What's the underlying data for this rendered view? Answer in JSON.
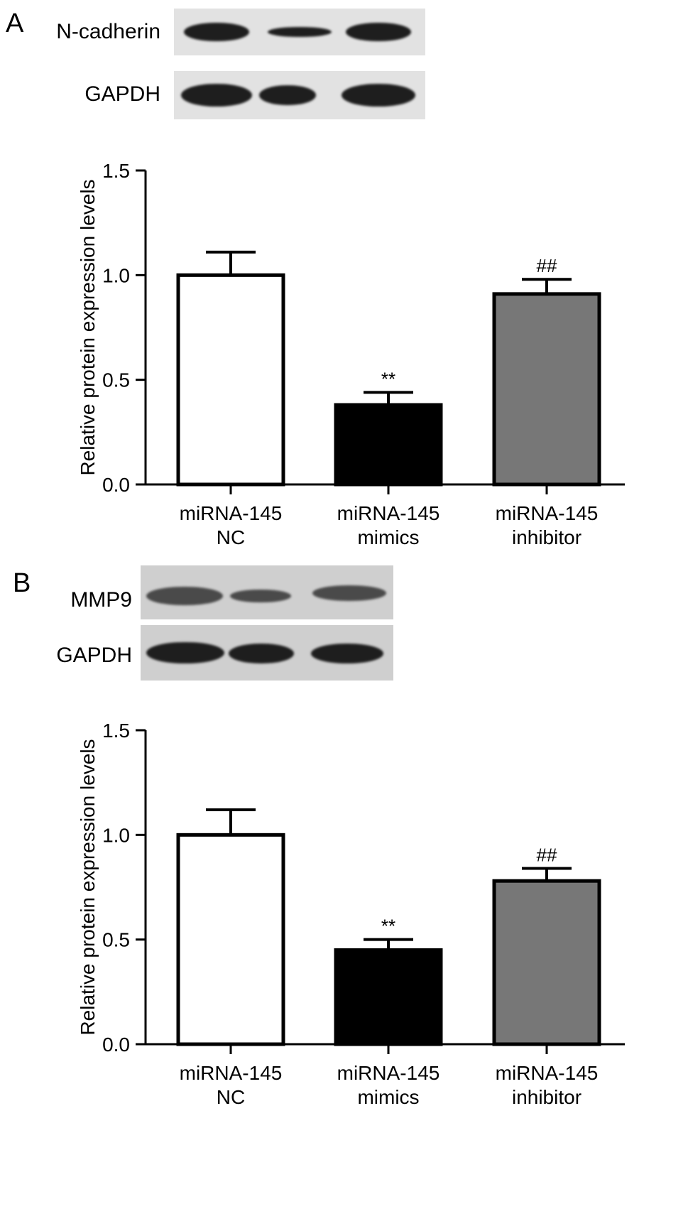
{
  "panel_a": {
    "letter": "A",
    "blots": [
      {
        "label": "N-cadherin",
        "band_levels": [
          1.0,
          0.38,
          0.91
        ]
      },
      {
        "label": "GAPDH",
        "band_levels": [
          1.0,
          0.95,
          1.0
        ]
      }
    ]
  },
  "panel_b": {
    "letter": "B",
    "blots": [
      {
        "label": "MMP9",
        "band_levels": [
          1.0,
          0.45,
          0.78
        ]
      },
      {
        "label": "GAPDH",
        "band_levels": [
          1.0,
          1.0,
          1.0
        ]
      }
    ]
  },
  "chart_data": [
    {
      "type": "bar",
      "categories": [
        "miRNA-145\nNC",
        "miRNA-145\nmimics",
        "miRNA-145\ninhibitor"
      ],
      "values": [
        1.0,
        0.38,
        0.91
      ],
      "errors": [
        0.11,
        0.06,
        0.07
      ],
      "annotations": [
        "",
        "**",
        "##"
      ],
      "bar_colors": [
        "#ffffff",
        "#000000",
        "#777777"
      ],
      "title": "",
      "xlabel": "",
      "ylabel": "Relative protein expression levels",
      "ylim": [
        0,
        1.5
      ],
      "yticks": [
        "0.0",
        "0.5",
        "1.0",
        "1.5"
      ],
      "grid": false
    },
    {
      "type": "bar",
      "categories": [
        "miRNA-145\nNC",
        "miRNA-145\nmimics",
        "miRNA-145\ninhibitor"
      ],
      "values": [
        1.0,
        0.45,
        0.78
      ],
      "errors": [
        0.12,
        0.05,
        0.06
      ],
      "annotations": [
        "",
        "**",
        "##"
      ],
      "bar_colors": [
        "#ffffff",
        "#000000",
        "#777777"
      ],
      "title": "",
      "xlabel": "",
      "ylabel": "Relative protein expression levels",
      "ylim": [
        0,
        1.5
      ],
      "yticks": [
        "0.0",
        "0.5",
        "1.0",
        "1.5"
      ],
      "grid": false
    }
  ]
}
